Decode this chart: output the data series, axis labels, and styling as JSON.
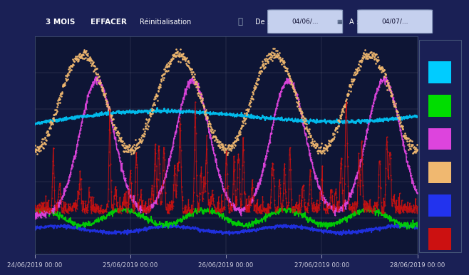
{
  "bg_color": "#1a2055",
  "toolbar_color": "#1e2870",
  "chart_bg": "#0e1535",
  "x_labels": [
    "24/06/2019 00:00",
    "25/06/2019 00:00",
    "26/06/2019 00:00",
    "27/06/2019 00:00",
    "28/06/2019 00:00"
  ],
  "legend_colors_top_to_bottom": [
    "#00ccff",
    "#00dd00",
    "#dd44dd",
    "#f0b870",
    "#2233ee",
    "#cc1111"
  ],
  "line_colors": {
    "cyan": "#00ccff",
    "green": "#00dd00",
    "magenta": "#dd44dd",
    "orange": "#f0b870",
    "blue": "#2233ee",
    "red": "#cc1111"
  },
  "grid_color": "#ffffff",
  "tick_color": "#ccccdd",
  "num_points": 1200
}
